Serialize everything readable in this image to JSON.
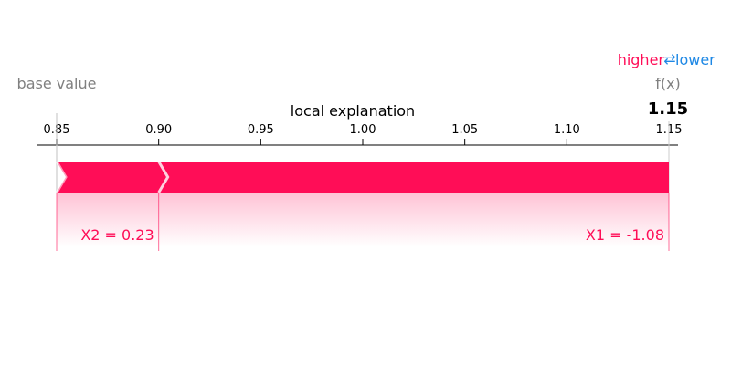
{
  "legend": {
    "higher": "higher",
    "lower": "lower",
    "arrow": "⇄"
  },
  "colors": {
    "positive": "#ff0d57",
    "negative": "#1e88e5",
    "gray": "#808080"
  },
  "chart_data": {
    "type": "force",
    "title": "local explanation",
    "base_value_label": "base value",
    "output_label": "f(x)",
    "output_value": "1.15",
    "base_value": 0.85,
    "output": 1.15,
    "xlim": [
      0.84,
      1.15
    ],
    "ticks": [
      0.85,
      0.9,
      0.95,
      1.0,
      1.05,
      1.1,
      1.15
    ],
    "tick_labels": [
      "0.85",
      "0.90",
      "0.95",
      "1.00",
      "1.05",
      "1.10",
      "1.15"
    ],
    "features": [
      {
        "label": "X2 = 0.23",
        "start": 0.85,
        "end": 0.9,
        "direction": "higher"
      },
      {
        "label": "X1 = -1.08",
        "start": 0.9,
        "end": 1.15,
        "direction": "higher"
      }
    ]
  }
}
